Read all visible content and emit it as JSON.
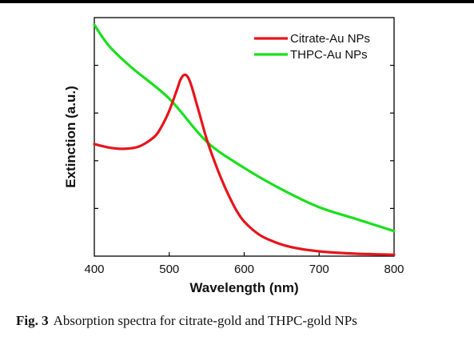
{
  "caption": {
    "label": "Fig. 3",
    "text": "Absorption spectra for citrate-gold and THPC-gold NPs"
  },
  "chart_data": {
    "type": "line",
    "title": "",
    "xlabel": "Wavelength (nm)",
    "ylabel": "Extinction (a.u.)",
    "xlim": [
      400,
      800
    ],
    "ylim": [
      0,
      1
    ],
    "x_ticks": [
      400,
      500,
      600,
      700,
      800
    ],
    "y_tick_labels": [],
    "grid": false,
    "legend_position": "top-right",
    "series": [
      {
        "name": "Citrate-Au NPs",
        "color": "#e8141b",
        "x": [
          400,
          420,
          440,
          460,
          480,
          490,
          500,
          510,
          515,
          520,
          525,
          530,
          540,
          550,
          560,
          570,
          580,
          590,
          600,
          620,
          640,
          660,
          680,
          700,
          720,
          750,
          800
        ],
        "y": [
          0.47,
          0.455,
          0.45,
          0.46,
          0.5,
          0.545,
          0.61,
          0.695,
          0.74,
          0.76,
          0.75,
          0.71,
          0.6,
          0.49,
          0.4,
          0.32,
          0.25,
          0.19,
          0.145,
          0.09,
          0.06,
          0.04,
          0.028,
          0.02,
          0.015,
          0.01,
          0.006
        ]
      },
      {
        "name": "THPC-Au NPs",
        "color": "#19e01c",
        "x": [
          400,
          420,
          450,
          500,
          550,
          600,
          650,
          700,
          750,
          800
        ],
        "y": [
          0.97,
          0.88,
          0.79,
          0.66,
          0.48,
          0.37,
          0.28,
          0.205,
          0.155,
          0.105
        ]
      }
    ]
  }
}
